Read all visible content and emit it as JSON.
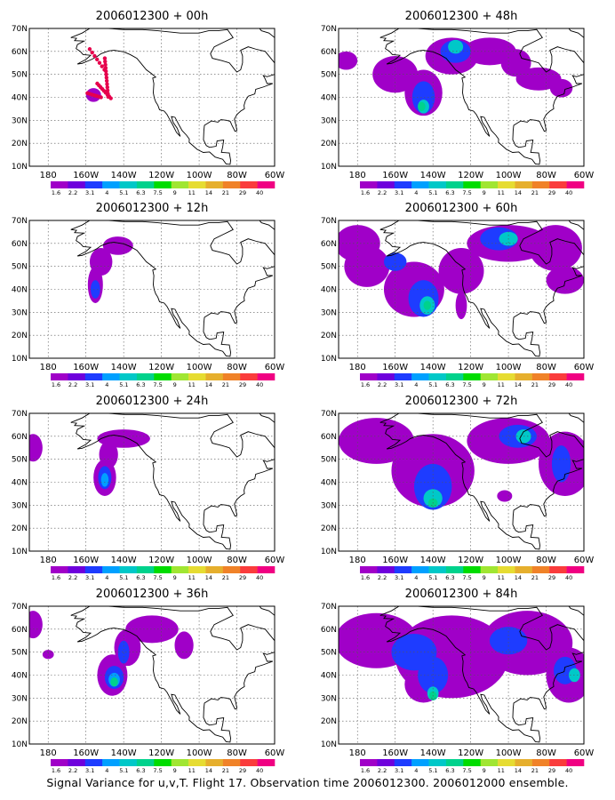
{
  "figure": {
    "caption": "Signal Variance for u,v,T. Flight 17. Observation time 2006012300. 2006012000 ensemble.",
    "lat_labels": [
      "70N",
      "60N",
      "50N",
      "40N",
      "30N",
      "20N",
      "10N"
    ],
    "lon_labels": [
      "180",
      "160W",
      "140W",
      "120W",
      "100W",
      "80W",
      "60W"
    ],
    "colorbar_labels": [
      "1.6",
      "2.2",
      "3.1",
      "4",
      "5.1",
      "6.3",
      "7.5",
      "9",
      "11",
      "14",
      "21",
      "29",
      "40"
    ],
    "colorbar_colors": [
      "#a000c8",
      "#6e00dc",
      "#1e3cff",
      "#00a0ff",
      "#00c8c8",
      "#00d28c",
      "#00dc00",
      "#a0e632",
      "#e6dc32",
      "#e6af2d",
      "#f08228",
      "#fa3c3c",
      "#f00082"
    ],
    "map_extent": {
      "lon_min": -190,
      "lon_max": -60,
      "lat_min": 10,
      "lat_max": 70
    }
  },
  "panels": [
    {
      "title": "2006012300 + 00h",
      "column": "left",
      "row": 0,
      "lead_hours": 0,
      "observation_points": true
    },
    {
      "title": "2006012300 + 12h",
      "column": "left",
      "row": 1,
      "lead_hours": 12
    },
    {
      "title": "2006012300 + 24h",
      "column": "left",
      "row": 2,
      "lead_hours": 24
    },
    {
      "title": "2006012300 + 36h",
      "column": "left",
      "row": 3,
      "lead_hours": 36
    },
    {
      "title": "2006012300 + 48h",
      "column": "right",
      "row": 0,
      "lead_hours": 48
    },
    {
      "title": "2006012300 + 60h",
      "column": "right",
      "row": 1,
      "lead_hours": 60
    },
    {
      "title": "2006012300 + 72h",
      "column": "right",
      "row": 2,
      "lead_hours": 72
    },
    {
      "title": "2006012300 + 84h",
      "column": "right",
      "row": 3,
      "lead_hours": 84
    }
  ],
  "icons": {
    "observation_marker": "dot-marker-icon"
  }
}
